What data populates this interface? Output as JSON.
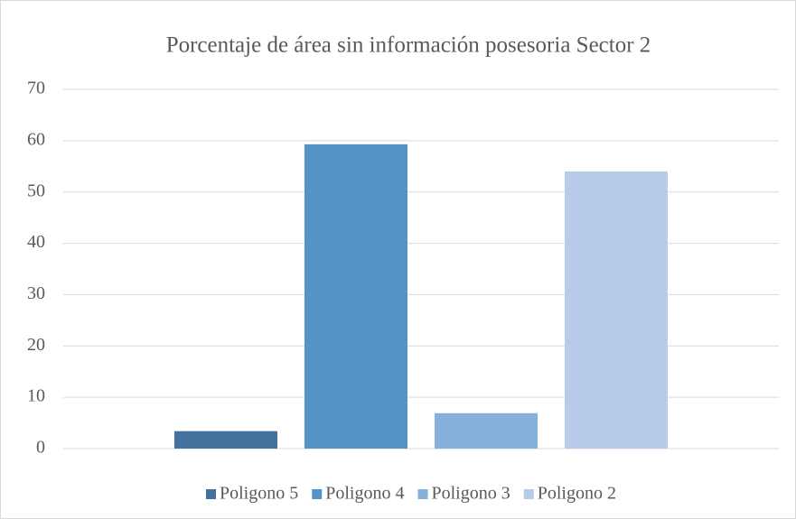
{
  "chart_data": {
    "type": "bar",
    "title": "Porcentaje de área sin información posesoria Sector 2",
    "categories": [
      null
    ],
    "series": [
      {
        "name": "Poligono 5",
        "color": "#41719c",
        "values": [
          3.4
        ]
      },
      {
        "name": "Poligono 4",
        "color": "#5592c8",
        "values": [
          59.3
        ]
      },
      {
        "name": "Poligono 3",
        "color": "#86afdb",
        "values": [
          6.9
        ]
      },
      {
        "name": "Poligono 2",
        "color": "#b7cce8",
        "values": [
          54.0
        ]
      }
    ],
    "ylim": [
      0,
      70
    ],
    "yticks": [
      0,
      10,
      20,
      30,
      40,
      50,
      60,
      70
    ],
    "grid": true,
    "legend": "bottom"
  }
}
